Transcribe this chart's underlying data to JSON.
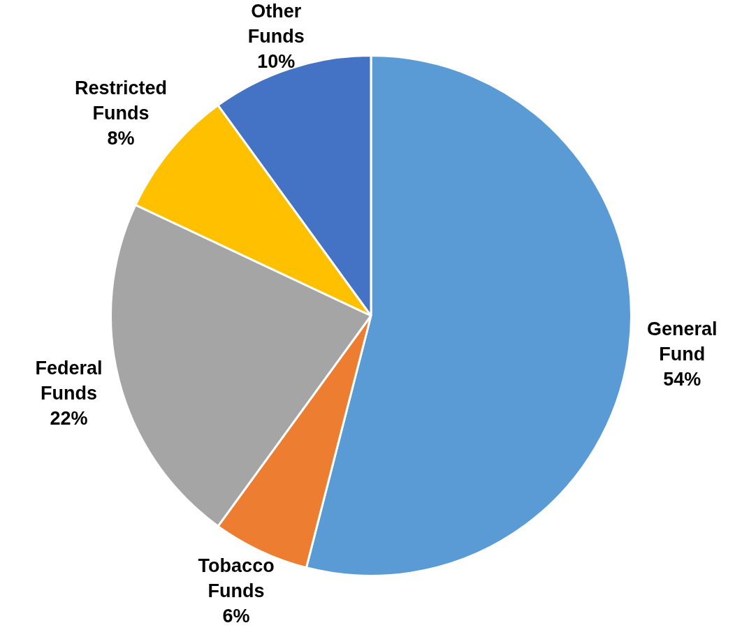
{
  "chart_data": {
    "type": "pie",
    "categories": [
      "General Fund",
      "Tobacco Funds",
      "Federal Funds",
      "Restricted Funds",
      "Other Funds"
    ],
    "values": [
      54,
      6,
      22,
      8,
      10
    ],
    "value_labels": [
      "54%",
      "6%",
      "22%",
      "8%",
      "10%"
    ],
    "colors": [
      "#5b9bd5",
      "#ed7d31",
      "#a5a5a5",
      "#ffc000",
      "#4472c4"
    ],
    "legend": false
  }
}
